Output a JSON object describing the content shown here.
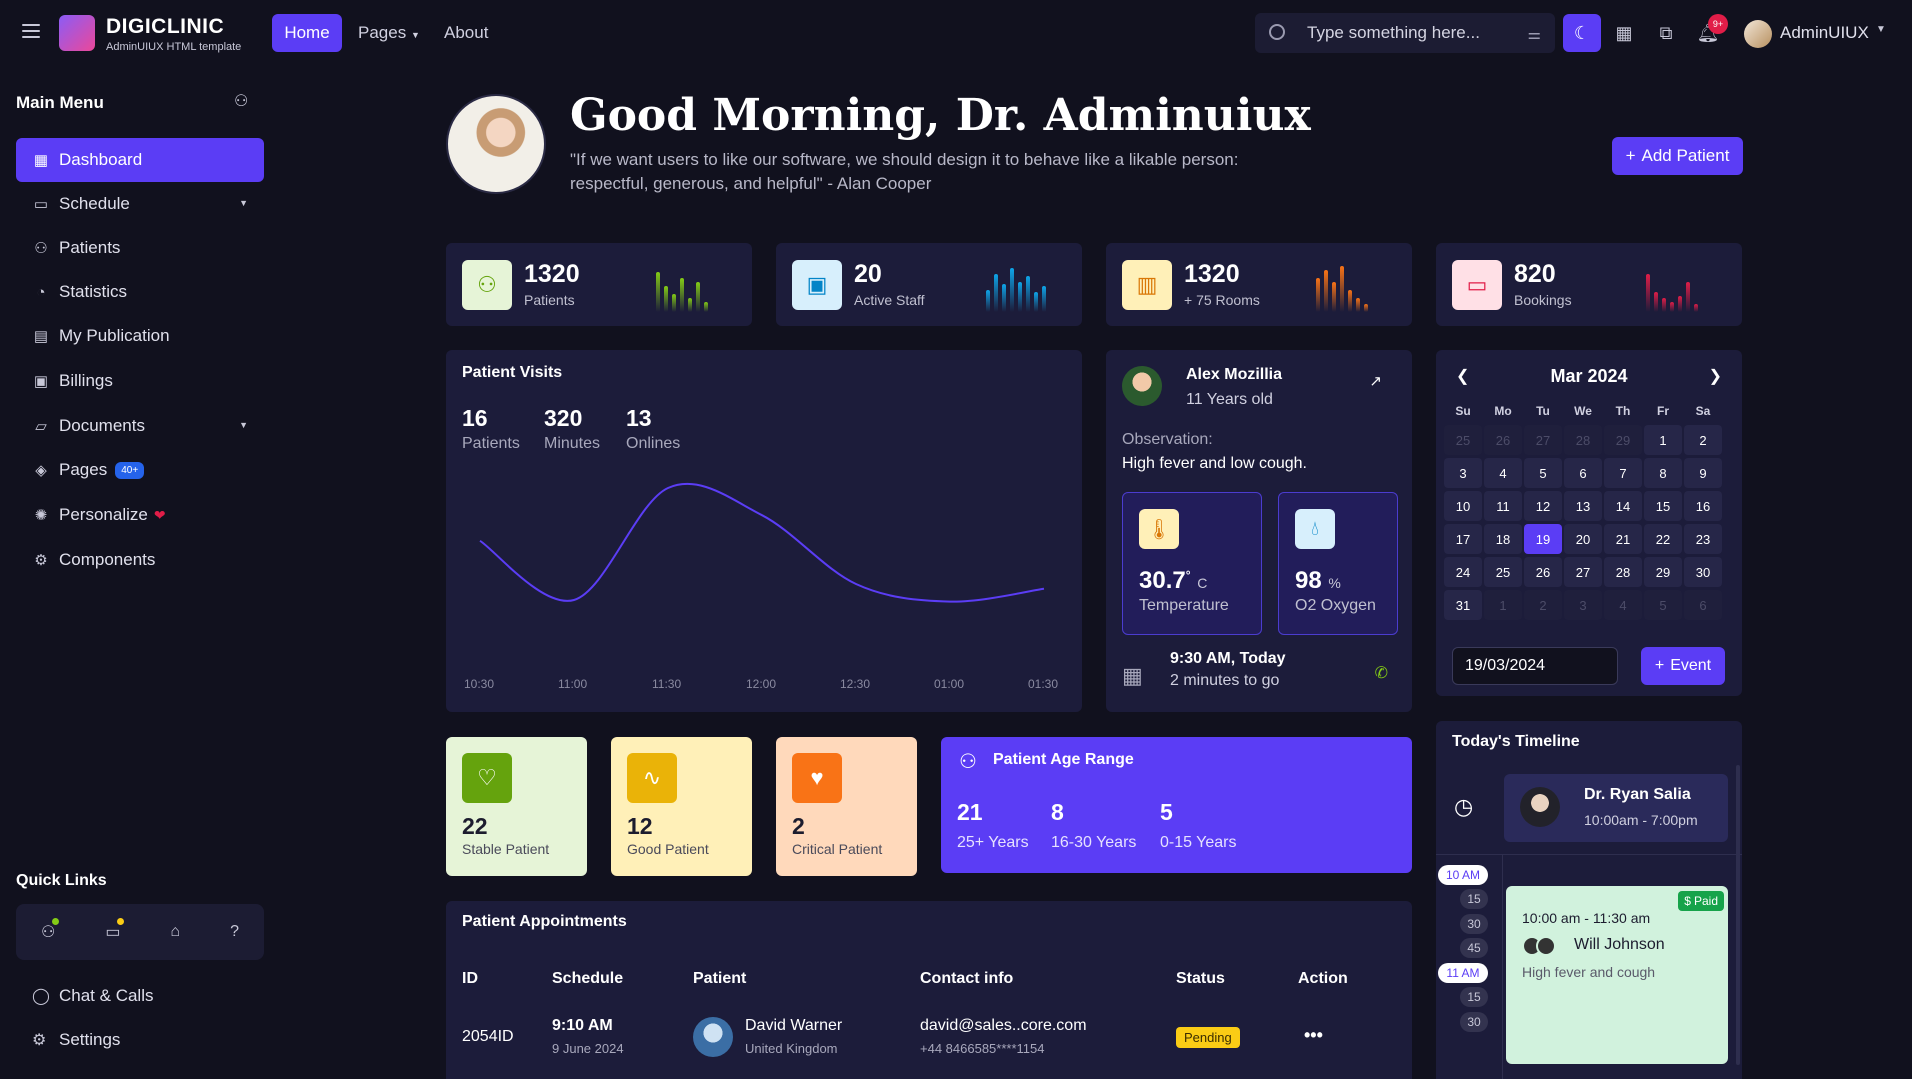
{
  "topbar": {
    "brand_title": "DIGICLINIC",
    "brand_subtitle": "AdminUIUX HTML template",
    "nav": {
      "home": "Home",
      "pages": "Pages",
      "about": "About"
    },
    "search_placeholder": "Type something here...",
    "notification_badge": "9+",
    "user_name": "AdminUIUX",
    "accent_color": "#5b3df5"
  },
  "sidebar": {
    "title": "Main Menu",
    "items": [
      {
        "label": "Dashboard",
        "icon": "grid-icon"
      },
      {
        "label": "Schedule",
        "icon": "calendar-icon"
      },
      {
        "label": "Patients",
        "icon": "users-icon"
      },
      {
        "label": "Statistics",
        "icon": "pie-chart-icon"
      },
      {
        "label": "My Publication",
        "icon": "document-icon"
      },
      {
        "label": "Billings",
        "icon": "money-icon"
      },
      {
        "label": "Documents",
        "icon": "folder-icon"
      },
      {
        "label": "Pages",
        "icon": "layers-icon"
      },
      {
        "label": "Personalize",
        "icon": "palette-icon"
      },
      {
        "label": "Components",
        "icon": "chip-icon"
      }
    ],
    "pages_badge": "40+",
    "quick_links_title": "Quick Links",
    "bottom": [
      {
        "label": "Chat & Calls",
        "icon": "chat-icon"
      },
      {
        "label": "Settings",
        "icon": "gear-icon"
      }
    ]
  },
  "hero": {
    "greeting": "Good Morning, Dr. Adminuiux",
    "quote": "\"If we want users to like our software, we should design it to behave like a likable person: respectful, generous, and helpful\" - Alan Cooper",
    "add_button": "Add Patient"
  },
  "stats": [
    {
      "value": "1320",
      "label": "Patients",
      "color": "#84cc16"
    },
    {
      "value": "20",
      "label": "Active Staff",
      "color": "#0ea5e9"
    },
    {
      "value": "1320",
      "label": "+ 75 Rooms",
      "color": "#f97316"
    },
    {
      "value": "820",
      "label": "Bookings",
      "color": "#e11d48"
    }
  ],
  "patient_visits": {
    "title": "Patient Visits",
    "metrics": [
      {
        "value": "16",
        "label": "Patients"
      },
      {
        "value": "320",
        "label": "Minutes"
      },
      {
        "value": "13",
        "label": "Onlines"
      }
    ]
  },
  "chart_data": {
    "type": "line",
    "x": [
      "10:30",
      "11:00",
      "11:30",
      "12:00",
      "12:30",
      "01:00",
      "01:30"
    ],
    "series": [
      {
        "values": [
          62,
          25,
          95,
          78,
          35,
          24,
          32
        ]
      }
    ],
    "ylim": [
      0,
      100
    ],
    "grid": false
  },
  "patient_card": {
    "name": "Alex Mozillia",
    "age": "11 Years old",
    "observation_label": "Observation:",
    "observation": "High fever and low cough.",
    "temperature_value": "30.7",
    "temperature_unit": "C",
    "temperature_label": "Temperature",
    "oxygen_value": "98",
    "oxygen_unit": "%",
    "oxygen_label": "O2 Oxygen",
    "appointment_time": "9:30 AM, Today",
    "appointment_eta": "2 minutes to go"
  },
  "calendar": {
    "month": "Mar 2024",
    "weekdays": [
      "Su",
      "Mo",
      "Tu",
      "We",
      "Th",
      "Fr",
      "Sa"
    ],
    "prev_month_days": [
      "25",
      "26",
      "27",
      "28",
      "29"
    ],
    "selected": "19",
    "date_value": "19/03/2024",
    "event_button": "Event"
  },
  "patient_status": [
    {
      "value": "22",
      "label": "Stable Patient",
      "icon": "heart-balloon-icon",
      "bg": "#e6f4d7",
      "icon_bg": "#65a30d"
    },
    {
      "value": "12",
      "label": "Good Patient",
      "icon": "pulse-icon",
      "bg": "#fff0b8",
      "icon_bg": "#eab308"
    },
    {
      "value": "2",
      "label": "Critical Patient",
      "icon": "heart-pulse-icon",
      "bg": "#ffd9bb",
      "icon_bg": "#f97316"
    }
  ],
  "age_range": {
    "title": "Patient Age Range",
    "groups": [
      {
        "value": "21",
        "label": "25+ Years"
      },
      {
        "value": "8",
        "label": "16-30 Years"
      },
      {
        "value": "5",
        "label": "0-15 Years"
      }
    ]
  },
  "appointments": {
    "title": "Patient Appointments",
    "columns": [
      "ID",
      "Schedule",
      "Patient",
      "Contact info",
      "Status",
      "Action"
    ],
    "rows": [
      {
        "id": "2054ID",
        "time": "9:10 AM",
        "date": "9 June 2024",
        "patient": "David Warner",
        "country": "United Kingdom",
        "email": "david@sales..core.com",
        "phone": "+44 8466585****1154",
        "status": "Pending"
      }
    ]
  },
  "timeline": {
    "title": "Today's Timeline",
    "doctor": "Dr. Ryan Salia",
    "doctor_hours": "10:00am - 7:00pm",
    "marks": [
      "10 AM",
      "15",
      "30",
      "45",
      "11 AM",
      "15",
      "30"
    ],
    "event": {
      "paid": "Paid",
      "time": "10:00 am - 11:30 am",
      "patient": "Will Johnson",
      "note": "High fever and cough"
    }
  }
}
